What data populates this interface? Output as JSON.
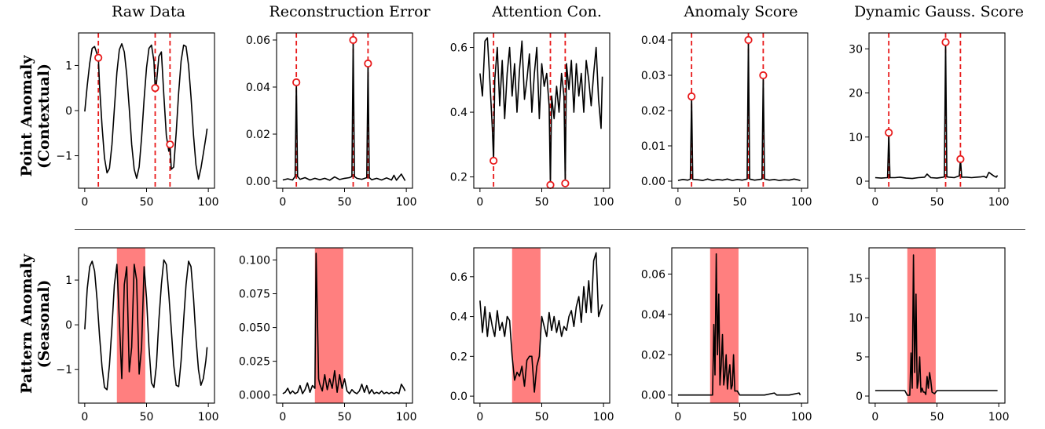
{
  "column_titles": [
    "Raw Data",
    "Reconstruction Error",
    "Attention Con.",
    "Anomaly Score",
    "Dynamic Gauss. Score"
  ],
  "row_titles": [
    {
      "line1": "Point Anomaly",
      "line2": "(Contextual)"
    },
    {
      "line1": "Pattern Anomaly",
      "line2": "(Seasonal)"
    }
  ],
  "colors": {
    "line": "#000000",
    "marker": "#e8191a",
    "shade": "#ff7f7f"
  },
  "chart_data": [
    {
      "type": "line",
      "row": 0,
      "col": 0,
      "title": "Raw Data",
      "xlim": [
        -5,
        105
      ],
      "ylim": [
        -1.72,
        1.72
      ],
      "xticks": [
        0,
        50,
        100
      ],
      "yticks": [
        1,
        0,
        -1
      ],
      "yticklabels": [
        "1",
        "0",
        "−1"
      ],
      "anomaly_x": [
        11,
        57,
        69
      ],
      "anomaly_y": [
        1.17,
        0.5,
        -0.75
      ],
      "x": [
        0,
        2,
        4,
        6,
        8,
        10,
        11,
        12,
        14,
        16,
        18,
        20,
        22,
        24,
        26,
        28,
        30,
        32,
        34,
        36,
        38,
        40,
        42,
        44,
        46,
        48,
        50,
        52,
        54,
        56,
        57,
        58,
        60,
        62,
        64,
        66,
        68,
        69,
        70,
        72,
        74,
        76,
        78,
        80,
        82,
        84,
        86,
        88,
        90,
        92,
        94,
        96,
        98,
        99
      ],
      "y": [
        -0.02,
        0.55,
        1.05,
        1.38,
        1.42,
        1.25,
        1.17,
        0.55,
        -0.35,
        -1.05,
        -1.38,
        -1.28,
        -0.75,
        0.05,
        0.85,
        1.35,
        1.48,
        1.3,
        0.8,
        0.05,
        -0.75,
        -1.3,
        -1.5,
        -1.25,
        -0.6,
        0.25,
        0.95,
        1.38,
        1.45,
        1.1,
        0.5,
        0.6,
        1.2,
        1.3,
        0.35,
        -0.55,
        -0.9,
        -0.75,
        -1.3,
        -1.25,
        -0.5,
        0.4,
        1.1,
        1.45,
        1.42,
        1.0,
        0.3,
        -0.55,
        -1.2,
        -1.52,
        -1.28,
        -0.95,
        -0.6,
        -0.4
      ]
    },
    {
      "type": "line",
      "row": 0,
      "col": 1,
      "title": "Reconstruction Error",
      "xlim": [
        -5,
        105
      ],
      "ylim": [
        -0.003,
        0.063
      ],
      "xticks": [
        0,
        50,
        100
      ],
      "yticks": [
        0,
        0.02,
        0.04,
        0.06
      ],
      "yticklabels": [
        "0.00",
        "0.02",
        "0.04",
        "0.06"
      ],
      "anomaly_x": [
        11,
        57,
        69
      ],
      "anomaly_y": [
        0.042,
        0.06,
        0.05
      ],
      "x": [
        0,
        4,
        8,
        10,
        11,
        12,
        14,
        18,
        22,
        26,
        30,
        34,
        38,
        42,
        46,
        50,
        54,
        56,
        57,
        58,
        60,
        64,
        68,
        69,
        70,
        72,
        76,
        80,
        84,
        88,
        90,
        92,
        96,
        99
      ],
      "y": [
        0.0005,
        0.001,
        0.0005,
        0.002,
        0.042,
        0.002,
        0.0008,
        0.0015,
        0.0005,
        0.0012,
        0.0006,
        0.0012,
        0.0004,
        0.0018,
        0.0007,
        0.0012,
        0.0015,
        0.002,
        0.06,
        0.002,
        0.0012,
        0.0008,
        0.0015,
        0.05,
        0.0015,
        0.0006,
        0.0012,
        0.0005,
        0.0014,
        0.0005,
        0.0025,
        0.0004,
        0.003,
        0.0002
      ]
    },
    {
      "type": "line",
      "row": 0,
      "col": 2,
      "title": "Attention Con.",
      "xlim": [
        -5,
        105
      ],
      "ylim": [
        0.165,
        0.645
      ],
      "xticks": [
        0,
        50,
        100
      ],
      "yticks": [
        0.2,
        0.4,
        0.6
      ],
      "yticklabels": [
        "0.2",
        "0.4",
        "0.6"
      ],
      "anomaly_x": [
        11,
        57,
        69
      ],
      "anomaly_y": [
        0.25,
        0.175,
        0.18
      ],
      "x": [
        0,
        2,
        4,
        6,
        8,
        10,
        11,
        12,
        14,
        16,
        18,
        20,
        22,
        24,
        26,
        28,
        30,
        32,
        34,
        36,
        38,
        40,
        42,
        44,
        46,
        48,
        50,
        52,
        54,
        56,
        57,
        58,
        60,
        62,
        64,
        66,
        68,
        69,
        70,
        72,
        74,
        76,
        78,
        80,
        82,
        84,
        86,
        88,
        90,
        92,
        94,
        96,
        98,
        99
      ],
      "y": [
        0.52,
        0.45,
        0.62,
        0.63,
        0.5,
        0.35,
        0.25,
        0.5,
        0.6,
        0.42,
        0.56,
        0.38,
        0.52,
        0.6,
        0.45,
        0.55,
        0.4,
        0.53,
        0.62,
        0.44,
        0.5,
        0.58,
        0.4,
        0.52,
        0.6,
        0.38,
        0.55,
        0.48,
        0.52,
        0.42,
        0.175,
        0.45,
        0.38,
        0.48,
        0.4,
        0.52,
        0.45,
        0.18,
        0.55,
        0.47,
        0.56,
        0.4,
        0.55,
        0.45,
        0.52,
        0.4,
        0.56,
        0.5,
        0.42,
        0.52,
        0.6,
        0.44,
        0.35,
        0.51
      ]
    },
    {
      "type": "line",
      "row": 0,
      "col": 3,
      "title": "Anomaly Score",
      "xlim": [
        -5,
        105
      ],
      "ylim": [
        -0.002,
        0.042
      ],
      "xticks": [
        0,
        50,
        100
      ],
      "yticks": [
        0,
        0.01,
        0.02,
        0.03,
        0.04
      ],
      "yticklabels": [
        "0.00",
        "0.01",
        "0.02",
        "0.03",
        "0.04"
      ],
      "anomaly_x": [
        11,
        57,
        69
      ],
      "anomaly_y": [
        0.024,
        0.04,
        0.03
      ],
      "x": [
        0,
        4,
        8,
        10,
        11,
        12,
        16,
        20,
        24,
        28,
        32,
        36,
        40,
        44,
        48,
        52,
        56,
        57,
        58,
        62,
        66,
        68,
        69,
        70,
        74,
        78,
        82,
        86,
        90,
        94,
        99
      ],
      "y": [
        0.0002,
        0.0005,
        0.0003,
        0.0006,
        0.024,
        0.0005,
        0.0004,
        0.0002,
        0.0006,
        0.0002,
        0.0005,
        0.0003,
        0.0006,
        0.0002,
        0.0005,
        0.0003,
        0.0006,
        0.04,
        0.0006,
        0.0003,
        0.0005,
        0.0006,
        0.03,
        0.0006,
        0.0003,
        0.0005,
        0.0002,
        0.0004,
        0.0003,
        0.0006,
        0.0002
      ]
    },
    {
      "type": "line",
      "row": 0,
      "col": 4,
      "title": "Dynamic Gauss. Score",
      "xlim": [
        -5,
        105
      ],
      "ylim": [
        -1.6,
        33.6
      ],
      "xticks": [
        0,
        50,
        100
      ],
      "yticks": [
        0,
        10,
        20,
        30
      ],
      "yticklabels": [
        "0",
        "10",
        "20",
        "30"
      ],
      "anomaly_x": [
        11,
        57,
        69
      ],
      "anomaly_y": [
        11,
        31.5,
        5
      ],
      "x": [
        0,
        5,
        10,
        11,
        12,
        16,
        20,
        25,
        30,
        35,
        40,
        42,
        45,
        50,
        55,
        56,
        57,
        58,
        60,
        64,
        68,
        69,
        70,
        74,
        78,
        82,
        86,
        88,
        90,
        92,
        96,
        98,
        99
      ],
      "y": [
        0.8,
        0.7,
        0.8,
        11,
        0.8,
        0.8,
        0.9,
        0.7,
        0.6,
        0.8,
        0.9,
        1.6,
        0.8,
        0.7,
        0.9,
        1.0,
        31.5,
        1.0,
        0.9,
        0.8,
        1.2,
        5,
        0.9,
        0.9,
        0.8,
        0.9,
        1.0,
        1.1,
        0.8,
        2.0,
        1.2,
        0.9,
        1.3
      ]
    },
    {
      "type": "line",
      "row": 1,
      "col": 0,
      "title": "",
      "xlim": [
        -5,
        105
      ],
      "ylim": [
        -1.75,
        1.72
      ],
      "xticks": [
        0,
        50,
        100
      ],
      "yticks": [
        1,
        0,
        -1
      ],
      "yticklabels": [
        "1",
        "0",
        "−1"
      ],
      "shaded_x": [
        26,
        49
      ],
      "x": [
        0,
        2,
        4,
        6,
        8,
        10,
        12,
        14,
        16,
        18,
        20,
        22,
        24,
        26,
        28,
        30,
        32,
        34,
        36,
        38,
        40,
        42,
        44,
        46,
        48,
        50,
        52,
        54,
        56,
        58,
        60,
        62,
        64,
        66,
        68,
        70,
        72,
        74,
        76,
        78,
        80,
        82,
        84,
        86,
        88,
        90,
        92,
        94,
        96,
        98,
        99
      ],
      "y": [
        -0.1,
        0.8,
        1.3,
        1.42,
        1.2,
        0.55,
        -0.25,
        -0.95,
        -1.4,
        -1.45,
        -0.9,
        -0.05,
        0.9,
        1.35,
        0.1,
        -1.2,
        0.9,
        1.3,
        -1.05,
        -0.5,
        1.35,
        1.0,
        -1.1,
        -0.5,
        1.3,
        0.6,
        -0.5,
        -1.3,
        -1.4,
        -0.9,
        0.1,
        0.9,
        1.45,
        1.35,
        0.7,
        -0.1,
        -0.9,
        -1.35,
        -1.38,
        -0.8,
        0.1,
        0.9,
        1.42,
        1.3,
        0.6,
        -0.3,
        -1.0,
        -1.35,
        -1.2,
        -0.8,
        -0.5
      ]
    },
    {
      "type": "line",
      "row": 1,
      "col": 1,
      "title": "",
      "xlim": [
        -5,
        105
      ],
      "ylim": [
        -0.006,
        0.109
      ],
      "xticks": [
        0,
        50,
        100
      ],
      "yticks": [
        0,
        0.025,
        0.05,
        0.075,
        0.1
      ],
      "yticklabels": [
        "0.000",
        "0.025",
        "0.050",
        "0.075",
        "0.100"
      ],
      "shaded_x": [
        26,
        49
      ],
      "x": [
        0,
        2,
        4,
        6,
        8,
        10,
        12,
        14,
        16,
        18,
        20,
        22,
        24,
        26,
        27,
        28,
        29,
        30,
        32,
        34,
        36,
        38,
        40,
        42,
        44,
        46,
        48,
        50,
        52,
        54,
        56,
        58,
        60,
        62,
        64,
        66,
        68,
        70,
        72,
        74,
        76,
        78,
        80,
        82,
        84,
        86,
        88,
        90,
        92,
        94,
        96,
        98,
        99
      ],
      "y": [
        0.001,
        0.002,
        0.005,
        0.001,
        0.003,
        0.001,
        0.002,
        0.007,
        0.001,
        0.004,
        0.009,
        0.002,
        0.007,
        0.005,
        0.105,
        0.06,
        0.012,
        0.008,
        0.003,
        0.015,
        0.004,
        0.012,
        0.005,
        0.018,
        0.002,
        0.015,
        0.005,
        0.012,
        0.003,
        0.001,
        0.004,
        0.002,
        0.001,
        0.003,
        0.008,
        0.002,
        0.007,
        0.001,
        0.004,
        0.001,
        0.002,
        0.001,
        0.003,
        0.001,
        0.002,
        0.001,
        0.002,
        0.001,
        0.002,
        0.001,
        0.008,
        0.005,
        0.003
      ]
    },
    {
      "type": "line",
      "row": 1,
      "col": 2,
      "title": "",
      "xlim": [
        -5,
        105
      ],
      "ylim": [
        -0.035,
        0.745
      ],
      "xticks": [
        0,
        50,
        100
      ],
      "yticks": [
        0,
        0.2,
        0.4,
        0.6
      ],
      "yticklabels": [
        "0.0",
        "0.2",
        "0.4",
        "0.6"
      ],
      "shaded_x": [
        26,
        49
      ],
      "x": [
        0,
        2,
        4,
        6,
        8,
        10,
        12,
        14,
        16,
        18,
        20,
        22,
        24,
        26,
        28,
        30,
        32,
        34,
        36,
        38,
        40,
        42,
        44,
        46,
        48,
        50,
        52,
        54,
        56,
        58,
        60,
        62,
        64,
        66,
        68,
        70,
        72,
        74,
        76,
        78,
        80,
        82,
        84,
        86,
        88,
        90,
        92,
        94,
        96,
        98,
        99
      ],
      "y": [
        0.48,
        0.32,
        0.45,
        0.3,
        0.42,
        0.35,
        0.3,
        0.43,
        0.33,
        0.37,
        0.3,
        0.4,
        0.38,
        0.2,
        0.08,
        0.12,
        0.1,
        0.15,
        0.05,
        0.18,
        0.2,
        0.2,
        0.02,
        0.15,
        0.2,
        0.4,
        0.35,
        0.3,
        0.42,
        0.33,
        0.4,
        0.32,
        0.38,
        0.3,
        0.35,
        0.33,
        0.4,
        0.43,
        0.35,
        0.45,
        0.5,
        0.37,
        0.55,
        0.42,
        0.58,
        0.42,
        0.68,
        0.72,
        0.4,
        0.44,
        0.46
      ]
    },
    {
      "type": "line",
      "row": 1,
      "col": 3,
      "title": "",
      "xlim": [
        -5,
        105
      ],
      "ylim": [
        -0.004,
        0.073
      ],
      "xticks": [
        0,
        50,
        100
      ],
      "yticks": [
        0,
        0.02,
        0.04,
        0.06
      ],
      "yticklabels": [
        "0.00",
        "0.02",
        "0.04",
        "0.06"
      ],
      "shaded_x": [
        26,
        49
      ],
      "x": [
        0,
        10,
        20,
        26,
        28,
        29,
        30,
        31,
        32,
        33,
        34,
        35,
        36,
        37,
        38,
        39,
        40,
        41,
        42,
        43,
        44,
        45,
        46,
        48,
        50,
        60,
        70,
        78,
        80,
        90,
        98,
        99
      ],
      "y": [
        0,
        0,
        0,
        0,
        0,
        0.035,
        0.01,
        0.07,
        0.02,
        0.05,
        0.005,
        0.015,
        0.03,
        0.005,
        0.01,
        0.02,
        0.003,
        0.01,
        0.015,
        0.003,
        0.005,
        0.02,
        0.002,
        0.002,
        0,
        0,
        0,
        0.001,
        0,
        0,
        0.001,
        0
      ]
    },
    {
      "type": "line",
      "row": 1,
      "col": 4,
      "title": "",
      "xlim": [
        -5,
        105
      ],
      "ylim": [
        -0.9,
        18.9
      ],
      "xticks": [
        0,
        50,
        100
      ],
      "yticks": [
        0,
        5,
        10,
        15
      ],
      "yticklabels": [
        "0",
        "5",
        "10",
        "15"
      ],
      "shaded_x": [
        26,
        49
      ],
      "x": [
        0,
        10,
        20,
        24,
        26,
        28,
        29,
        30,
        31,
        32,
        33,
        34,
        35,
        36,
        37,
        38,
        39,
        40,
        41,
        42,
        43,
        44,
        45,
        46,
        48,
        50,
        60,
        70,
        80,
        90,
        99
      ],
      "y": [
        0.7,
        0.7,
        0.7,
        0.7,
        0.1,
        0.1,
        5.5,
        1,
        18,
        3,
        13,
        1,
        2,
        5,
        0.5,
        1,
        0.5,
        0.5,
        0.2,
        2.5,
        1,
        3,
        2,
        0.5,
        0.3,
        0.7,
        0.7,
        0.7,
        0.7,
        0.7,
        0.7
      ]
    }
  ]
}
